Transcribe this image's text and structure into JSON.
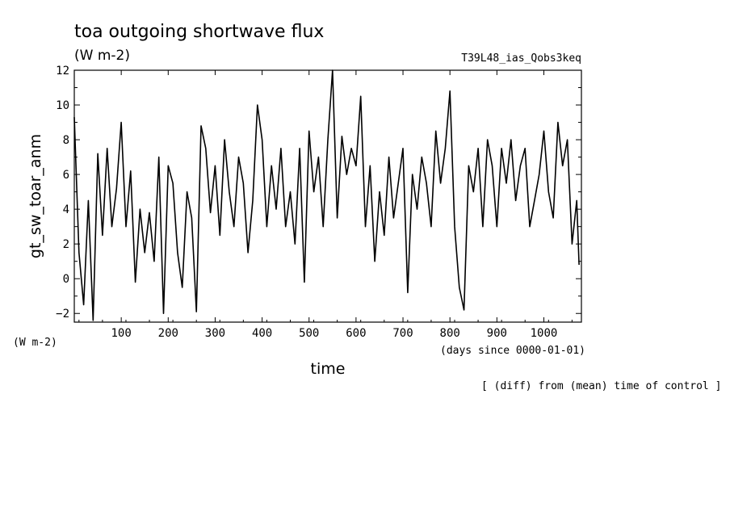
{
  "chart_data": {
    "type": "line",
    "title": "toa outgoing shortwave flux",
    "units": "(W m-2)",
    "experiment": "T39L48_ias_Qobs3keq",
    "xlabel": "time",
    "xunits": "(days since 0000-01-01)",
    "ylabel": "gt_sw_toar_anm",
    "yunits": "(W m-2)",
    "note": "[ (diff) from (mean) time of control ]",
    "xlim": [
      0,
      1080
    ],
    "ylim": [
      -2.5,
      12
    ],
    "xticks": [
      100,
      200,
      300,
      400,
      500,
      600,
      700,
      800,
      900,
      1000
    ],
    "yticks": [
      -2,
      0,
      2,
      4,
      6,
      8,
      10,
      12
    ],
    "grid": false,
    "line_color": "#000000",
    "series": [
      {
        "x": [
          0,
          10,
          20,
          30,
          40,
          50,
          60,
          70,
          80,
          90,
          100,
          110,
          120,
          130,
          140,
          150,
          160,
          170,
          180,
          190,
          200,
          210,
          220,
          230,
          240,
          250,
          260,
          270,
          280,
          290,
          300,
          310,
          320,
          330,
          340,
          350,
          360,
          370,
          380,
          390,
          400,
          410,
          420,
          430,
          440,
          450,
          460,
          470,
          480,
          490,
          500,
          510,
          520,
          530,
          540,
          550,
          560,
          570,
          580,
          590,
          600,
          610,
          620,
          630,
          640,
          650,
          660,
          670,
          680,
          690,
          700,
          710,
          720,
          730,
          740,
          750,
          760,
          770,
          780,
          790,
          800,
          810,
          820,
          830,
          840,
          850,
          860,
          870,
          880,
          890,
          900,
          910,
          920,
          930,
          940,
          950,
          960,
          970,
          980,
          990,
          1000,
          1010,
          1020,
          1030,
          1040,
          1050,
          1060,
          1070,
          1075
        ],
        "y": [
          9.3,
          1.5,
          -1.5,
          4.5,
          -2.4,
          7.2,
          2.5,
          7.5,
          3.0,
          5.2,
          9.0,
          3.0,
          6.2,
          -0.2,
          4.0,
          1.5,
          3.8,
          1.0,
          7.0,
          -2.0,
          6.5,
          5.5,
          1.5,
          -0.5,
          5.0,
          3.5,
          -1.9,
          8.8,
          7.5,
          3.8,
          6.5,
          2.5,
          8.0,
          5.0,
          3.0,
          7.0,
          5.5,
          1.5,
          4.5,
          10.0,
          8.0,
          3.0,
          6.5,
          4.0,
          7.5,
          3.0,
          5.0,
          2.0,
          7.5,
          -0.2,
          8.5,
          5.0,
          7.0,
          3.0,
          8.0,
          12.0,
          3.5,
          8.2,
          6.0,
          7.5,
          6.5,
          10.5,
          3.0,
          6.5,
          1.0,
          5.0,
          2.5,
          7.0,
          3.5,
          5.5,
          7.5,
          -0.8,
          6.0,
          4.0,
          7.0,
          5.5,
          3.0,
          8.5,
          5.5,
          7.5,
          10.8,
          3.0,
          -0.5,
          -1.8,
          6.5,
          5.0,
          7.5,
          3.0,
          8.0,
          6.5,
          3.0,
          7.5,
          5.5,
          8.0,
          4.5,
          6.5,
          7.5,
          3.0,
          4.5,
          6.0,
          8.5,
          5.0,
          3.5,
          9.0,
          6.5,
          8.0,
          2.0,
          4.5,
          0.8
        ]
      }
    ]
  }
}
